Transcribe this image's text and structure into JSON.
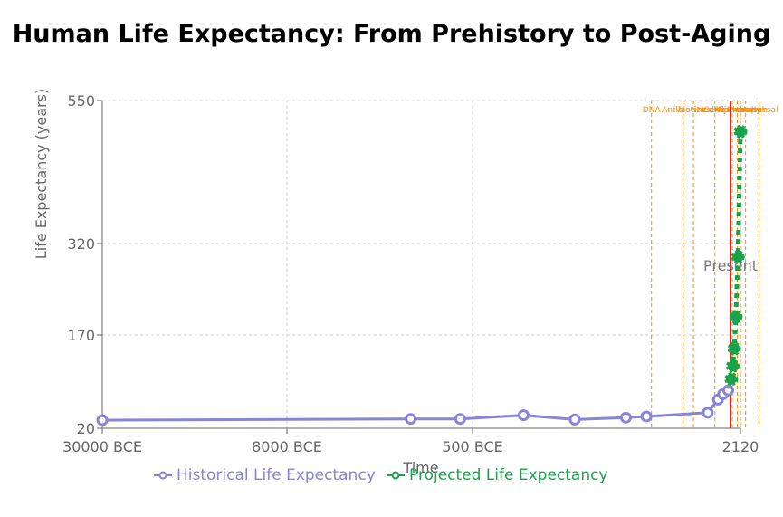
{
  "chart_data": {
    "type": "line",
    "title": "Human Life Expectancy: From Prehistory to Post-Aging",
    "xlabel": "Time",
    "ylabel": "Life Expectancy (years)",
    "xlim": [
      -30000,
      2120
    ],
    "ylim": [
      20,
      550
    ],
    "grid": true,
    "x_ticks": [
      {
        "value": -30000,
        "label": "30000 BCE"
      },
      {
        "value": -8000,
        "label": "8000 BCE"
      },
      {
        "value": -500,
        "label": "500 BCE"
      },
      {
        "value": 2120,
        "label": "2120"
      }
    ],
    "y_ticks": [
      {
        "value": 20,
        "label": "20"
      },
      {
        "value": 170,
        "label": "170"
      },
      {
        "value": 320,
        "label": "320"
      },
      {
        "value": 550,
        "label": "550"
      }
    ],
    "series": [
      {
        "name": "Historical Life Expectancy",
        "color": "#8884d8",
        "style": "solid",
        "points": [
          {
            "x": -30000,
            "y": 33
          },
          {
            "x": -3000,
            "y": 35
          },
          {
            "x": -1000,
            "y": 35
          },
          {
            "x": 0,
            "y": 41
          },
          {
            "x": 500,
            "y": 34
          },
          {
            "x": 1000,
            "y": 37
          },
          {
            "x": 1200,
            "y": 39
          },
          {
            "x": 1800,
            "y": 45
          },
          {
            "x": 1900,
            "y": 66
          },
          {
            "x": 1950,
            "y": 75
          },
          {
            "x": 2000,
            "y": 81
          }
        ]
      },
      {
        "name": "Projected Life Expectancy",
        "color": "#16a34a",
        "style": "dashed",
        "points": [
          {
            "x": 2030,
            "y": 99
          },
          {
            "x": 2045,
            "y": 120
          },
          {
            "x": 2060,
            "y": 148
          },
          {
            "x": 2075,
            "y": 200
          },
          {
            "x": 2095,
            "y": 298
          },
          {
            "x": 2120,
            "y": 500
          }
        ]
      }
    ],
    "event_markers": {
      "color": "#ff8c00",
      "items": [
        {
          "x": 1250,
          "label": "DNA"
        },
        {
          "x": 1560,
          "label": "Antibiotics"
        },
        {
          "x": 1660,
          "label": "Vaccines"
        },
        {
          "x": 1870,
          "label": "Medicine"
        },
        {
          "x": 2040,
          "label": "Gene Therapy"
        },
        {
          "x": 2090,
          "label": "Nanobots"
        },
        {
          "x": 2120,
          "label": "Rejuvenation"
        },
        {
          "x": 2170,
          "label": "Immortal"
        },
        {
          "x": 2300,
          "label": "Universal"
        }
      ]
    },
    "present_marker": {
      "x": 2023,
      "label": "Present",
      "color": "#d62728"
    }
  }
}
